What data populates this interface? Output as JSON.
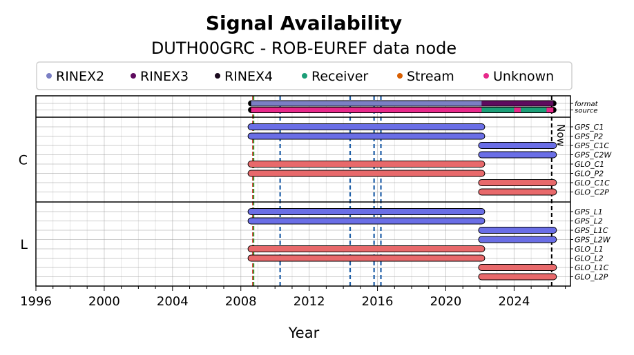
{
  "chart_data": {
    "type": "timeline",
    "title": "Signal Availability",
    "subtitle": "DUTH00GRC - ROB-EUREF data node",
    "xlabel": "Year",
    "xlim": [
      1996,
      2027.3
    ],
    "xticks": [
      1996,
      2000,
      2004,
      2008,
      2012,
      2016,
      2020,
      2024
    ],
    "now_year": 2026.2,
    "now_label": "Now",
    "legend": [
      {
        "name": "RINEX2",
        "color": "#7b7fc4"
      },
      {
        "name": "RINEX3",
        "color": "#5e0b5e"
      },
      {
        "name": "RINEX4",
        "color": "#1a0a1e"
      },
      {
        "name": "Receiver",
        "color": "#1b9e77"
      },
      {
        "name": "Stream",
        "color": "#d95f02"
      },
      {
        "name": "Unknown",
        "color": "#e7298a"
      }
    ],
    "event_lines": [
      {
        "year": 2008.7,
        "color": "#d62728"
      },
      {
        "year": 2008.75,
        "color": "#2ca02c"
      },
      {
        "year": 2010.3,
        "color": "#1f5fa8"
      },
      {
        "year": 2014.4,
        "color": "#1f5fa8"
      },
      {
        "year": 2015.8,
        "color": "#1f5fa8"
      },
      {
        "year": 2016.2,
        "color": "#1f5fa8"
      }
    ],
    "groups": [
      {
        "label": "",
        "rows": [
          {
            "label": "format",
            "bars": [
              {
                "start": 2008.6,
                "end": 2022.1,
                "color": "#7b7fc4"
              },
              {
                "start": 2022.1,
                "end": 2026.3,
                "color": "#5e0b5e"
              }
            ]
          },
          {
            "label": "source",
            "bars": [
              {
                "start": 2008.6,
                "end": 2022.1,
                "color": "#e7298a"
              },
              {
                "start": 2022.1,
                "end": 2024.0,
                "color": "#1b9e77"
              },
              {
                "start": 2024.0,
                "end": 2024.4,
                "color": "#e7298a"
              },
              {
                "start": 2024.4,
                "end": 2025.9,
                "color": "#1b9e77"
              },
              {
                "start": 2025.9,
                "end": 2026.3,
                "color": "#e7298a"
              }
            ]
          }
        ]
      },
      {
        "label": "C",
        "rows": [
          {
            "label": "GPS_C1",
            "bars": [
              {
                "start": 2008.6,
                "end": 2022.1,
                "color": "#6a6ee6"
              }
            ]
          },
          {
            "label": "GPS_P2",
            "bars": [
              {
                "start": 2008.6,
                "end": 2022.1,
                "color": "#6a6ee6"
              }
            ]
          },
          {
            "label": "GPS_C1C",
            "bars": [
              {
                "start": 2022.1,
                "end": 2026.3,
                "color": "#6a6ee6"
              }
            ]
          },
          {
            "label": "GPS_C2W",
            "bars": [
              {
                "start": 2022.1,
                "end": 2026.3,
                "color": "#6a6ee6"
              }
            ]
          },
          {
            "label": "GLO_C1",
            "bars": [
              {
                "start": 2008.6,
                "end": 2022.1,
                "color": "#e8696b"
              }
            ]
          },
          {
            "label": "GLO_P2",
            "bars": [
              {
                "start": 2008.6,
                "end": 2022.1,
                "color": "#e8696b"
              }
            ]
          },
          {
            "label": "GLO_C1C",
            "bars": [
              {
                "start": 2022.1,
                "end": 2026.3,
                "color": "#e8696b"
              }
            ]
          },
          {
            "label": "GLO_C2P",
            "bars": [
              {
                "start": 2022.1,
                "end": 2026.3,
                "color": "#e8696b"
              }
            ]
          }
        ]
      },
      {
        "label": "L",
        "rows": [
          {
            "label": "GPS_L1",
            "bars": [
              {
                "start": 2008.6,
                "end": 2022.1,
                "color": "#6a6ee6"
              }
            ]
          },
          {
            "label": "GPS_L2",
            "bars": [
              {
                "start": 2008.6,
                "end": 2022.1,
                "color": "#6a6ee6"
              }
            ]
          },
          {
            "label": "GPS_L1C",
            "bars": [
              {
                "start": 2022.1,
                "end": 2026.3,
                "color": "#6a6ee6"
              }
            ]
          },
          {
            "label": "GPS_L2W",
            "bars": [
              {
                "start": 2022.1,
                "end": 2026.3,
                "color": "#6a6ee6"
              }
            ]
          },
          {
            "label": "GLO_L1",
            "bars": [
              {
                "start": 2008.6,
                "end": 2022.1,
                "color": "#e8696b"
              }
            ]
          },
          {
            "label": "GLO_L2",
            "bars": [
              {
                "start": 2008.6,
                "end": 2022.1,
                "color": "#e8696b"
              }
            ]
          },
          {
            "label": "GLO_L1C",
            "bars": [
              {
                "start": 2022.1,
                "end": 2026.3,
                "color": "#e8696b"
              }
            ]
          },
          {
            "label": "GLO_L2P",
            "bars": [
              {
                "start": 2022.1,
                "end": 2026.3,
                "color": "#e8696b"
              }
            ]
          }
        ]
      }
    ]
  }
}
